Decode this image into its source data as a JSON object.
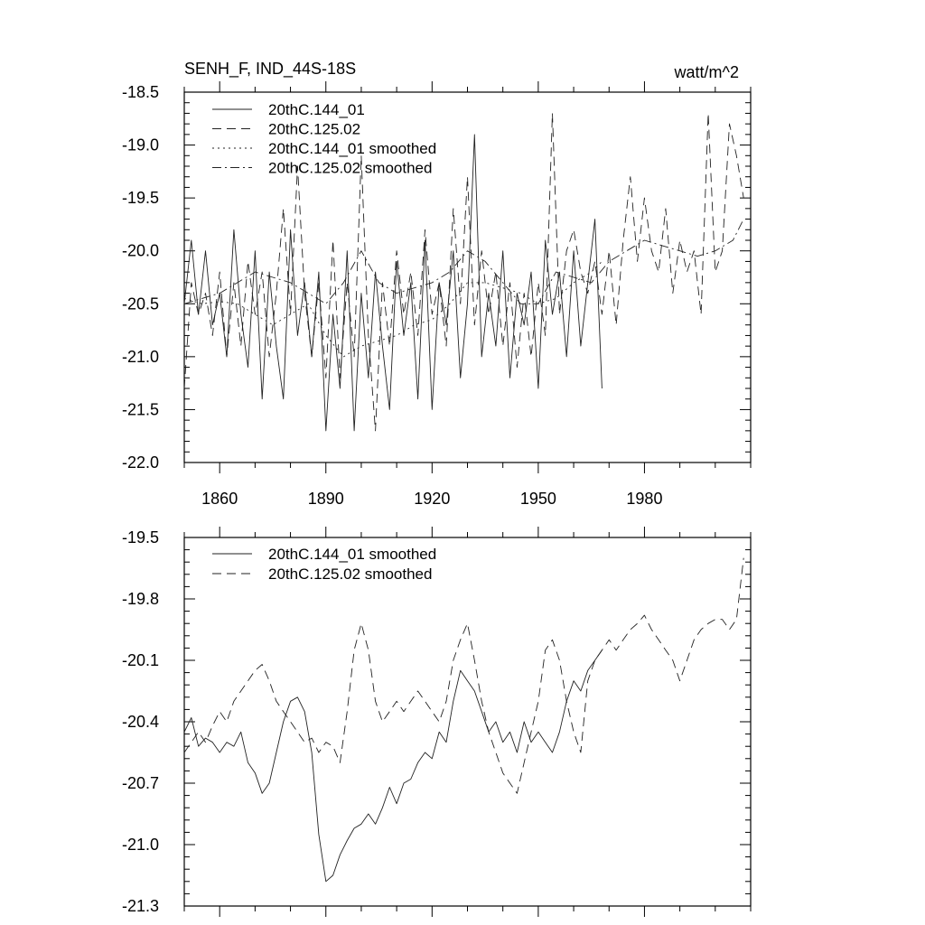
{
  "figure": {
    "title_left": "SENH_F, IND_44S-18S",
    "title_right": "watt/m^2"
  },
  "chart_data": [
    {
      "type": "line",
      "title": "SENH_F, IND_44S-18S",
      "units": "watt/m^2",
      "xlabel": "",
      "ylabel": "",
      "xlim": [
        1850,
        2010
      ],
      "ylim": [
        -22.0,
        -18.5
      ],
      "xticks": [
        1860,
        1890,
        1920,
        1950,
        1980
      ],
      "xtick_labels": [
        "1860",
        "1890",
        "1920",
        "1950",
        "1980"
      ],
      "yticks": [
        -22.0,
        -21.5,
        -21.0,
        -20.5,
        -20.0,
        -19.5,
        -19.0,
        -18.5
      ],
      "ytick_labels": [
        "-22.0",
        "-21.5",
        "-21.0",
        "-20.5",
        "-20.0",
        "-19.5",
        "-19.0",
        "-18.5"
      ],
      "legend_position": "top-left",
      "series": [
        {
          "name": "20thC.144_01",
          "style": "solid",
          "x": [
            1850,
            1852,
            1854,
            1856,
            1858,
            1860,
            1862,
            1864,
            1866,
            1868,
            1870,
            1872,
            1874,
            1876,
            1878,
            1880,
            1882,
            1884,
            1886,
            1888,
            1890,
            1892,
            1894,
            1896,
            1898,
            1900,
            1902,
            1904,
            1906,
            1908,
            1910,
            1912,
            1914,
            1916,
            1918,
            1920,
            1922,
            1924,
            1926,
            1928,
            1930,
            1932,
            1934,
            1936,
            1938,
            1940,
            1942,
            1944,
            1946,
            1948,
            1950,
            1952,
            1954,
            1956,
            1958,
            1960,
            1962,
            1964,
            1966,
            1968
          ],
          "values": [
            -20.5,
            -19.9,
            -20.6,
            -20.0,
            -20.7,
            -20.4,
            -21.0,
            -19.8,
            -20.6,
            -21.1,
            -20.0,
            -21.4,
            -20.2,
            -20.9,
            -21.4,
            -19.8,
            -20.8,
            -20.3,
            -21.0,
            -20.2,
            -21.7,
            -20.6,
            -21.3,
            -20.0,
            -21.7,
            -20.4,
            -21.2,
            -20.2,
            -20.9,
            -21.5,
            -20.1,
            -20.8,
            -20.3,
            -21.4,
            -19.9,
            -21.5,
            -20.3,
            -20.7,
            -20.0,
            -21.2,
            -20.5,
            -18.9,
            -21.0,
            -20.4,
            -20.9,
            -20.0,
            -21.2,
            -20.4,
            -20.7,
            -20.2,
            -21.3,
            -19.9,
            -20.6,
            -20.2,
            -21.0,
            -20.0,
            -20.9,
            -20.3,
            -19.7,
            -21.3
          ]
        },
        {
          "name": "20thC.125.02",
          "style": "dashed",
          "x": [
            1850,
            1852,
            1854,
            1856,
            1858,
            1860,
            1862,
            1864,
            1866,
            1868,
            1870,
            1872,
            1874,
            1876,
            1878,
            1880,
            1882,
            1884,
            1886,
            1888,
            1890,
            1892,
            1894,
            1896,
            1898,
            1900,
            1902,
            1904,
            1906,
            1908,
            1910,
            1912,
            1914,
            1916,
            1918,
            1920,
            1922,
            1924,
            1926,
            1928,
            1930,
            1932,
            1934,
            1936,
            1938,
            1940,
            1942,
            1944,
            1946,
            1948,
            1950,
            1952,
            1954,
            1956,
            1958,
            1960,
            1962,
            1964,
            1966,
            1968,
            1970,
            1972,
            1974,
            1976,
            1978,
            1980,
            1982,
            1984,
            1986,
            1988,
            1990,
            1992,
            1994,
            1996,
            1998,
            2000,
            2002,
            2004,
            2006,
            2008
          ],
          "values": [
            -21.3,
            -20.3,
            -20.6,
            -20.4,
            -20.8,
            -20.2,
            -21.0,
            -20.3,
            -20.9,
            -20.1,
            -20.6,
            -20.2,
            -21.0,
            -20.4,
            -19.6,
            -20.6,
            -19.2,
            -20.4,
            -21.0,
            -20.3,
            -21.2,
            -19.9,
            -21.2,
            -20.3,
            -21.0,
            -19.1,
            -20.8,
            -21.7,
            -20.3,
            -20.9,
            -20.0,
            -20.6,
            -20.2,
            -20.8,
            -19.8,
            -20.6,
            -20.3,
            -20.9,
            -19.6,
            -20.5,
            -19.3,
            -20.7,
            -20.0,
            -20.6,
            -20.2,
            -20.9,
            -20.3,
            -21.1,
            -20.4,
            -21.0,
            -20.3,
            -20.8,
            -18.7,
            -20.6,
            -20.0,
            -19.8,
            -20.2,
            -20.4,
            -20.1,
            -20.6,
            -20.0,
            -20.7,
            -19.9,
            -19.3,
            -20.1,
            -19.5,
            -20.0,
            -20.2,
            -19.6,
            -20.4,
            -19.9,
            -20.2,
            -20.0,
            -20.6,
            -18.7,
            -20.2,
            -20.0,
            -18.8,
            -19.1,
            -19.5
          ]
        },
        {
          "name": "20thC.144_01 smoothed",
          "style": "dotted",
          "x": [
            1850,
            1855,
            1860,
            1865,
            1870,
            1875,
            1880,
            1885,
            1890,
            1895,
            1900,
            1905,
            1910,
            1915,
            1920,
            1925,
            1930,
            1935,
            1940,
            1945,
            1950,
            1955,
            1960,
            1965,
            1968
          ],
          "values": [
            -20.45,
            -20.5,
            -20.48,
            -20.5,
            -20.6,
            -20.7,
            -20.6,
            -20.5,
            -20.8,
            -21.0,
            -20.9,
            -20.85,
            -20.8,
            -20.7,
            -20.65,
            -20.5,
            -20.3,
            -20.3,
            -20.35,
            -20.4,
            -20.5,
            -20.45,
            -20.3,
            -20.2,
            -20.1
          ]
        },
        {
          "name": "20thC.125.02 smoothed",
          "style": "dashdot",
          "x": [
            1850,
            1855,
            1860,
            1865,
            1870,
            1875,
            1880,
            1885,
            1890,
            1895,
            1900,
            1905,
            1910,
            1915,
            1920,
            1925,
            1930,
            1935,
            1940,
            1945,
            1950,
            1955,
            1960,
            1965,
            1970,
            1975,
            1980,
            1985,
            1990,
            1995,
            2000,
            2005,
            2008
          ],
          "values": [
            -20.5,
            -20.45,
            -20.4,
            -20.3,
            -20.2,
            -20.25,
            -20.3,
            -20.4,
            -20.5,
            -20.3,
            -20.0,
            -20.3,
            -20.4,
            -20.35,
            -20.3,
            -20.2,
            -20.0,
            -20.1,
            -20.3,
            -20.5,
            -20.5,
            -20.2,
            -20.25,
            -20.3,
            -20.1,
            -20.0,
            -19.9,
            -19.95,
            -20.0,
            -20.05,
            -20.0,
            -19.9,
            -19.7
          ]
        }
      ],
      "legend": [
        "20thC.144_01",
        "20thC.125.02",
        "20thC.144_01 smoothed",
        "20thC.125.02 smoothed"
      ]
    },
    {
      "type": "line",
      "title": "",
      "xlabel": "",
      "ylabel": "",
      "xlim": [
        1850,
        2010
      ],
      "ylim": [
        -21.3,
        -19.5
      ],
      "xticks": [
        1860,
        1890,
        1920,
        1950,
        1980
      ],
      "yticks": [
        -21.3,
        -21.0,
        -20.7,
        -20.4,
        -20.1,
        -19.8,
        -19.5
      ],
      "ytick_labels": [
        "-21.3",
        "-21.0",
        "-20.7",
        "-20.4",
        "-20.1",
        "-19.8",
        "-19.5"
      ],
      "legend_position": "top-left",
      "series": [
        {
          "name": "20thC.144_01 smoothed",
          "style": "solid",
          "x": [
            1850,
            1852,
            1854,
            1856,
            1858,
            1860,
            1862,
            1864,
            1866,
            1868,
            1870,
            1872,
            1874,
            1876,
            1878,
            1880,
            1882,
            1884,
            1886,
            1888,
            1890,
            1892,
            1894,
            1896,
            1898,
            1900,
            1902,
            1904,
            1906,
            1908,
            1910,
            1912,
            1914,
            1916,
            1918,
            1920,
            1922,
            1924,
            1926,
            1928,
            1930,
            1932,
            1934,
            1936,
            1938,
            1940,
            1942,
            1944,
            1946,
            1948,
            1950,
            1952,
            1954,
            1956,
            1958,
            1960,
            1962,
            1964,
            1966,
            1968
          ],
          "values": [
            -20.45,
            -20.38,
            -20.52,
            -20.48,
            -20.5,
            -20.55,
            -20.5,
            -20.52,
            -20.45,
            -20.6,
            -20.65,
            -20.75,
            -20.7,
            -20.55,
            -20.4,
            -20.3,
            -20.28,
            -20.35,
            -20.55,
            -20.95,
            -21.18,
            -21.15,
            -21.05,
            -20.98,
            -20.92,
            -20.9,
            -20.85,
            -20.9,
            -20.82,
            -20.72,
            -20.8,
            -20.7,
            -20.68,
            -20.6,
            -20.55,
            -20.58,
            -20.45,
            -20.5,
            -20.3,
            -20.15,
            -20.2,
            -20.25,
            -20.35,
            -20.45,
            -20.4,
            -20.5,
            -20.45,
            -20.55,
            -20.4,
            -20.5,
            -20.45,
            -20.5,
            -20.55,
            -20.45,
            -20.3,
            -20.2,
            -20.25,
            -20.15,
            -20.1,
            -20.05
          ]
        },
        {
          "name": "20thC.125.02 smoothed",
          "style": "dashed",
          "x": [
            1850,
            1852,
            1854,
            1856,
            1858,
            1860,
            1862,
            1864,
            1866,
            1868,
            1870,
            1872,
            1874,
            1876,
            1878,
            1880,
            1882,
            1884,
            1886,
            1888,
            1890,
            1892,
            1894,
            1896,
            1898,
            1900,
            1902,
            1904,
            1906,
            1908,
            1910,
            1912,
            1914,
            1916,
            1918,
            1920,
            1922,
            1924,
            1926,
            1928,
            1930,
            1932,
            1934,
            1936,
            1938,
            1940,
            1942,
            1944,
            1946,
            1948,
            1950,
            1952,
            1954,
            1956,
            1958,
            1960,
            1962,
            1964,
            1966,
            1968,
            1970,
            1972,
            1974,
            1976,
            1978,
            1980,
            1982,
            1984,
            1986,
            1988,
            1990,
            1992,
            1994,
            1996,
            1998,
            2000,
            2002,
            2004,
            2006,
            2008
          ],
          "values": [
            -20.55,
            -20.5,
            -20.45,
            -20.5,
            -20.42,
            -20.35,
            -20.4,
            -20.3,
            -20.25,
            -20.2,
            -20.15,
            -20.12,
            -20.2,
            -20.3,
            -20.35,
            -20.4,
            -20.45,
            -20.5,
            -20.48,
            -20.55,
            -20.5,
            -20.52,
            -20.6,
            -20.35,
            -20.05,
            -19.92,
            -20.05,
            -20.3,
            -20.4,
            -20.35,
            -20.3,
            -20.35,
            -20.3,
            -20.25,
            -20.3,
            -20.35,
            -20.4,
            -20.3,
            -20.1,
            -20.0,
            -19.92,
            -20.1,
            -20.3,
            -20.45,
            -20.55,
            -20.65,
            -20.7,
            -20.75,
            -20.6,
            -20.45,
            -20.3,
            -20.05,
            -20.0,
            -20.1,
            -20.3,
            -20.45,
            -20.55,
            -20.2,
            -20.1,
            -20.05,
            -20.0,
            -20.05,
            -20.0,
            -19.95,
            -19.92,
            -19.88,
            -19.95,
            -20.0,
            -20.05,
            -20.1,
            -20.2,
            -20.1,
            -20.0,
            -19.95,
            -19.92,
            -19.9,
            -19.9,
            -19.95,
            -19.9,
            -19.6
          ]
        }
      ],
      "legend": [
        "20thC.144_01 smoothed",
        "20thC.125.02 smoothed"
      ]
    }
  ]
}
